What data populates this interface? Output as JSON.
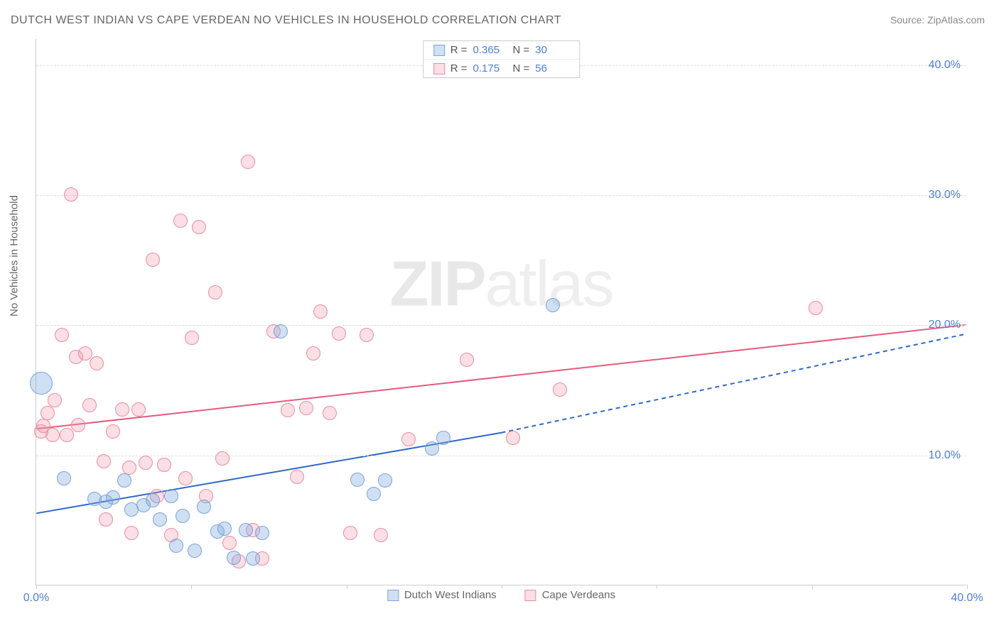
{
  "title": "DUTCH WEST INDIAN VS CAPE VERDEAN NO VEHICLES IN HOUSEHOLD CORRELATION CHART",
  "source": "Source: ZipAtlas.com",
  "y_axis_label": "No Vehicles in Household",
  "watermark": {
    "bold": "ZIP",
    "thin": "atlas"
  },
  "chart": {
    "type": "scatter",
    "background_color": "#ffffff",
    "grid_color": "#dddddd",
    "axis_color": "#cccccc",
    "tick_label_color": "#4a7fd6",
    "xlim": [
      0,
      40
    ],
    "ylim": [
      0,
      42
    ],
    "y_ticks": [
      10,
      20,
      30,
      40
    ],
    "y_tick_labels": [
      "10.0%",
      "20.0%",
      "30.0%",
      "40.0%"
    ],
    "x_ticks": [
      0,
      6.67,
      13.33,
      20,
      26.67,
      33.33,
      40
    ],
    "x_min_label": "0.0%",
    "x_max_label": "40.0%",
    "point_radius": 10,
    "point_stroke_width": 1,
    "line_width": 2
  },
  "series": {
    "blue": {
      "label": "Dutch West Indians",
      "R_label": "R =",
      "R_value": "0.365",
      "N_label": "N =",
      "N_value": "30",
      "fill_color": "rgba(120,165,220,0.35)",
      "stroke_color": "#7aa3d8",
      "line_color": "#2f68c4",
      "trend": {
        "x1": 0,
        "y1": 5.5,
        "x2": 20,
        "y2": 11.7,
        "x2_ext": 40,
        "y2_ext": 19.3,
        "dash": "6 5"
      },
      "points": [
        [
          0.2,
          15.5,
          16
        ],
        [
          1.2,
          8.2
        ],
        [
          2.5,
          6.6
        ],
        [
          3.0,
          6.4
        ],
        [
          3.3,
          6.7
        ],
        [
          3.8,
          8.0
        ],
        [
          4.1,
          5.8
        ],
        [
          4.6,
          6.1
        ],
        [
          5.0,
          6.5
        ],
        [
          5.3,
          5.0
        ],
        [
          5.8,
          6.8
        ],
        [
          6.0,
          3.0
        ],
        [
          6.3,
          5.3
        ],
        [
          6.8,
          2.6
        ],
        [
          7.2,
          6.0
        ],
        [
          7.8,
          4.1
        ],
        [
          8.1,
          4.3
        ],
        [
          8.5,
          2.1
        ],
        [
          9.0,
          4.2
        ],
        [
          9.3,
          2.0
        ],
        [
          9.7,
          4.0
        ],
        [
          10.5,
          19.5,
          10
        ],
        [
          13.8,
          8.1
        ],
        [
          14.5,
          7.0
        ],
        [
          15.0,
          8.0
        ],
        [
          17.0,
          10.5
        ],
        [
          17.5,
          11.3
        ],
        [
          22.2,
          21.5
        ]
      ]
    },
    "pink": {
      "label": "Cape Verdeans",
      "R_label": "R =",
      "R_value": "0.175",
      "N_label": "N =",
      "N_value": "56",
      "fill_color": "rgba(240,150,170,0.30)",
      "stroke_color": "#e98ca2",
      "line_color": "#e65a7c",
      "trend": {
        "x1": 0,
        "y1": 12.0,
        "x2": 40,
        "y2": 20.0
      },
      "points": [
        [
          0.2,
          11.8
        ],
        [
          0.3,
          12.2
        ],
        [
          0.5,
          13.2
        ],
        [
          0.7,
          11.5
        ],
        [
          0.8,
          14.2
        ],
        [
          1.1,
          19.2
        ],
        [
          1.3,
          11.5
        ],
        [
          1.5,
          30.0
        ],
        [
          1.7,
          17.5
        ],
        [
          1.8,
          12.3
        ],
        [
          2.1,
          17.8
        ],
        [
          2.3,
          13.8
        ],
        [
          2.6,
          17.0
        ],
        [
          2.9,
          9.5
        ],
        [
          3.0,
          5.0
        ],
        [
          3.3,
          11.8
        ],
        [
          3.7,
          13.5
        ],
        [
          4.0,
          9.0
        ],
        [
          4.1,
          4.0
        ],
        [
          4.4,
          13.5
        ],
        [
          4.7,
          9.4
        ],
        [
          5.0,
          25.0
        ],
        [
          5.2,
          6.8
        ],
        [
          5.5,
          9.2
        ],
        [
          5.8,
          3.8
        ],
        [
          6.2,
          28.0
        ],
        [
          6.4,
          8.2
        ],
        [
          6.7,
          19.0
        ],
        [
          7.0,
          27.5
        ],
        [
          7.3,
          6.8
        ],
        [
          7.7,
          22.5
        ],
        [
          8.0,
          9.7
        ],
        [
          8.3,
          3.2
        ],
        [
          8.7,
          1.8
        ],
        [
          9.1,
          32.5
        ],
        [
          9.3,
          4.2
        ],
        [
          9.7,
          2.0
        ],
        [
          10.2,
          19.5
        ],
        [
          10.8,
          13.4
        ],
        [
          11.2,
          8.3
        ],
        [
          11.6,
          13.6
        ],
        [
          11.9,
          17.8
        ],
        [
          12.2,
          21.0
        ],
        [
          12.6,
          13.2
        ],
        [
          13.0,
          19.3
        ],
        [
          13.5,
          4.0
        ],
        [
          14.2,
          19.2
        ],
        [
          14.8,
          3.8
        ],
        [
          16.0,
          11.2
        ],
        [
          18.5,
          17.3
        ],
        [
          20.5,
          11.3
        ],
        [
          22.5,
          15.0
        ],
        [
          33.5,
          21.3
        ]
      ]
    }
  }
}
